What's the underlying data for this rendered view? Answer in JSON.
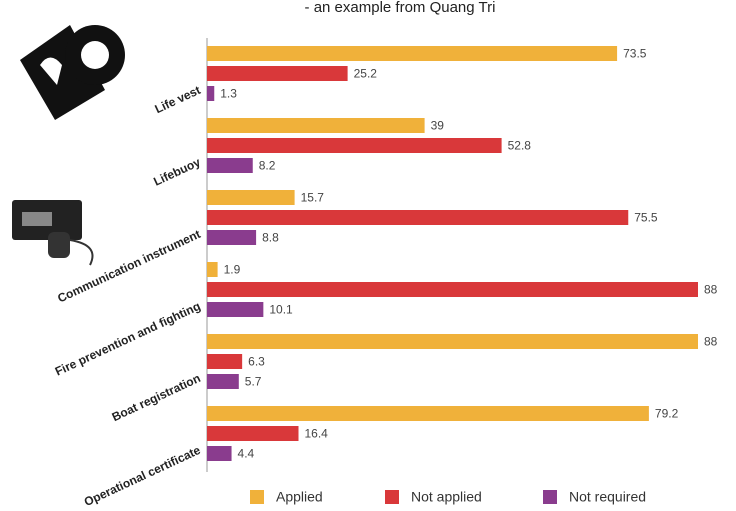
{
  "chart_data": {
    "type": "bar",
    "orientation": "horizontal",
    "subtitle": "- an example from Quang Tri",
    "categories": [
      "Life vest",
      "Lifebuoy",
      "Communication instrument",
      "Fire prevention and fighting",
      "Boat registration",
      "Operational certificate"
    ],
    "series": [
      {
        "name": "Applied",
        "color": "#f0b13a",
        "values": [
          73.5,
          39,
          15.7,
          1.9,
          88,
          79.2
        ]
      },
      {
        "name": "Not applied",
        "color": "#d9383a",
        "values": [
          25.2,
          52.8,
          75.5,
          88,
          6.3,
          16.4
        ]
      },
      {
        "name": "Not required",
        "color": "#8a3c8e",
        "values": [
          1.3,
          8.2,
          8.8,
          10.1,
          5.7,
          4.4
        ]
      }
    ],
    "xlim": [
      0,
      88
    ]
  }
}
